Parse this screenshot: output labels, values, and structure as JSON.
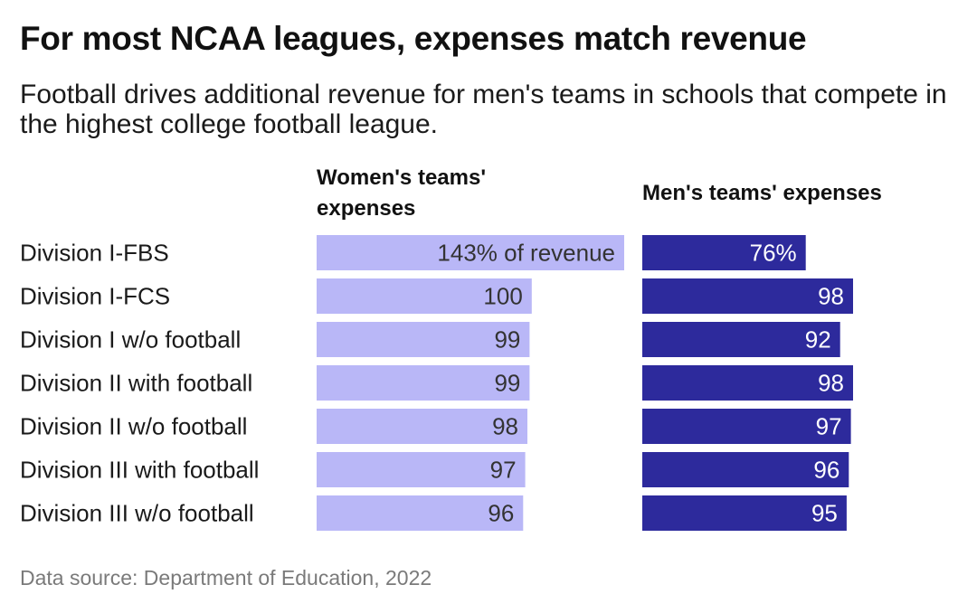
{
  "title": "For most NCAA leagues, expenses match revenue",
  "subtitle": "Football drives additional revenue for men's teams in schools that compete in the highest college football league.",
  "source": "Data source: Department of Education, 2022",
  "chart_data": {
    "type": "bar",
    "categories": [
      "Division I-FBS",
      "Division I-FCS",
      "Division I w/o football",
      "Division II with football",
      "Division II w/o football",
      "Division III with football",
      "Division III w/o football"
    ],
    "series": [
      {
        "name": "Women's teams' expenses",
        "values": [
          143,
          100,
          99,
          99,
          98,
          97,
          96
        ],
        "labels": [
          "143% of revenue",
          "100",
          "99",
          "99",
          "98",
          "97",
          "96"
        ],
        "color": "#b9b7f7"
      },
      {
        "name": "Men's teams' expenses",
        "values": [
          76,
          98,
          92,
          98,
          97,
          96,
          95
        ],
        "labels": [
          "76%",
          "98",
          "92",
          "98",
          "97",
          "96",
          "95"
        ],
        "color": "#2d2a9c"
      }
    ],
    "xlim": [
      0,
      143
    ],
    "unit": "% of revenue",
    "grid": false,
    "legend": "column headers above each panel"
  }
}
